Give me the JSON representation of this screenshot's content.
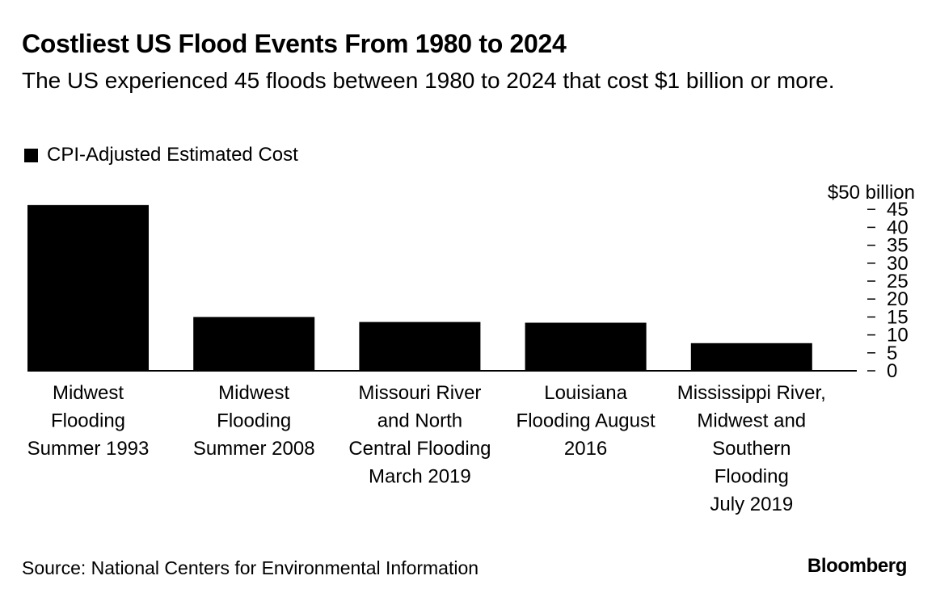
{
  "header": {
    "title": "Costliest US Flood Events From 1980 to 2024",
    "subtitle": "The US experienced 45 floods between 1980 to 2024 that cost $1 billion or more."
  },
  "footer": {
    "source": "Source: National Centers for Environmental Information",
    "brand": "Bloomberg"
  },
  "colors": {
    "bar": "#000000",
    "background": "#ffffff"
  },
  "chart_data": {
    "type": "bar",
    "title": "Costliest US Flood Events From 1980 to 2024",
    "subtitle": "The US experienced 45 floods between 1980 to 2024 that cost $1 billion or more.",
    "categories": [
      [
        "Midwest",
        "Flooding",
        "Summer 1993"
      ],
      [
        "Midwest",
        "Flooding",
        "Summer 2008"
      ],
      [
        "Missouri River",
        "and North",
        "Central Flooding",
        "March 2019"
      ],
      [
        "Louisiana",
        "Flooding August",
        "2016"
      ],
      [
        "Mississippi River,",
        "Midwest and",
        "Southern",
        "Flooding",
        "July 2019"
      ]
    ],
    "series": [
      {
        "name": "CPI-Adjusted Estimated Cost",
        "values": [
          46.2,
          15.0,
          13.6,
          13.4,
          7.7
        ]
      }
    ],
    "ylim": [
      0,
      50
    ],
    "yticks": [
      0,
      5,
      10,
      15,
      20,
      25,
      30,
      35,
      40,
      45
    ],
    "y_top_label": "$50 billion",
    "y_axis_side": "right",
    "grid": false,
    "legend": "top-left"
  }
}
